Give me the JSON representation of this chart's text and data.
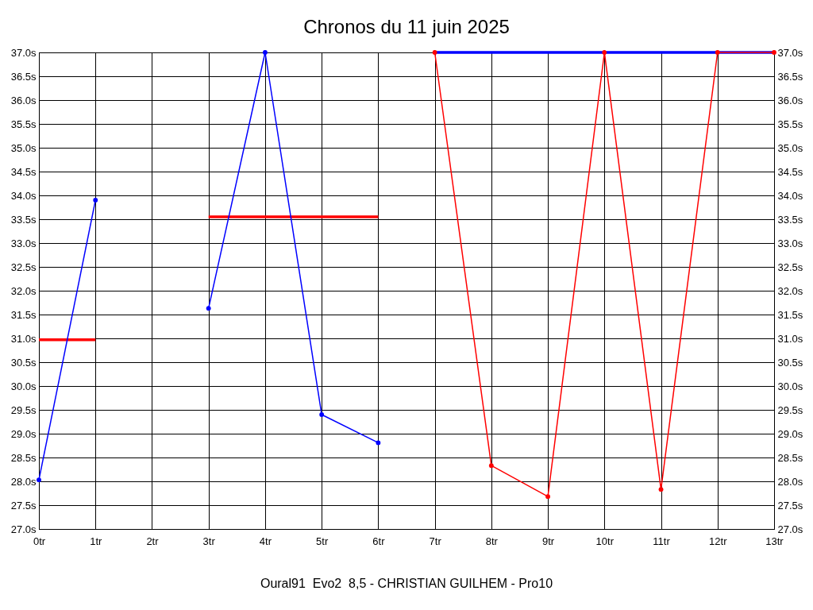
{
  "chart_data": {
    "type": "line",
    "title": "Chronos du 11 juin 2025",
    "annotations": [
      "Oural91  Evo2  8,5 - CHRISTIAN GUILHEM - Pro10"
    ],
    "xlim": [
      0,
      13
    ],
    "xticks": [
      {
        "value": 0,
        "label": "0tr"
      },
      {
        "value": 1,
        "label": "1tr"
      },
      {
        "value": 2,
        "label": "2tr"
      },
      {
        "value": 3,
        "label": "3tr"
      },
      {
        "value": 4,
        "label": "4tr"
      },
      {
        "value": 5,
        "label": "5tr"
      },
      {
        "value": 6,
        "label": "6tr"
      },
      {
        "value": 7,
        "label": "7tr"
      },
      {
        "value": 8,
        "label": "8tr"
      },
      {
        "value": 9,
        "label": "9tr"
      },
      {
        "value": 10,
        "label": "10tr"
      },
      {
        "value": 11,
        "label": "11tr"
      },
      {
        "value": 12,
        "label": "12tr"
      },
      {
        "value": 13,
        "label": "13tr"
      }
    ],
    "ylim": [
      27,
      37
    ],
    "yticks": [
      {
        "value": 27,
        "label": "27.0s"
      },
      {
        "value": 27.5,
        "label": "27.5s"
      },
      {
        "value": 28,
        "label": "28.0s"
      },
      {
        "value": 28.5,
        "label": "28.5s"
      },
      {
        "value": 29,
        "label": "29.0s"
      },
      {
        "value": 29.5,
        "label": "29.5s"
      },
      {
        "value": 30,
        "label": "30.0s"
      },
      {
        "value": 30.5,
        "label": "30.5s"
      },
      {
        "value": 31,
        "label": "31.0s"
      },
      {
        "value": 31.5,
        "label": "31.5s"
      },
      {
        "value": 32,
        "label": "32.0s"
      },
      {
        "value": 32.5,
        "label": "32.5s"
      },
      {
        "value": 33,
        "label": "33.0s"
      },
      {
        "value": 33.5,
        "label": "33.5s"
      },
      {
        "value": 34,
        "label": "34.0s"
      },
      {
        "value": 34.5,
        "label": "34.5s"
      },
      {
        "value": 35,
        "label": "35.0s"
      },
      {
        "value": 35.5,
        "label": "35.5s"
      },
      {
        "value": 36,
        "label": "36.0s"
      },
      {
        "value": 36.5,
        "label": "36.5s"
      },
      {
        "value": 37,
        "label": "37.0s"
      }
    ],
    "y2lim": [
      27,
      37
    ],
    "y2ticks": [
      {
        "value": 27,
        "label": "27.0s"
      },
      {
        "value": 27.5,
        "label": "27.5s"
      },
      {
        "value": 28,
        "label": "28.0s"
      },
      {
        "value": 28.5,
        "label": "28.5s"
      },
      {
        "value": 29,
        "label": "29.0s"
      },
      {
        "value": 29.5,
        "label": "29.5s"
      },
      {
        "value": 30,
        "label": "30.0s"
      },
      {
        "value": 30.5,
        "label": "30.5s"
      },
      {
        "value": 31,
        "label": "31.0s"
      },
      {
        "value": 31.5,
        "label": "31.5s"
      },
      {
        "value": 32,
        "label": "32.0s"
      },
      {
        "value": 32.5,
        "label": "32.5s"
      },
      {
        "value": 33,
        "label": "33.0s"
      },
      {
        "value": 33.5,
        "label": "33.5s"
      },
      {
        "value": 34,
        "label": "34.0s"
      },
      {
        "value": 34.5,
        "label": "34.5s"
      },
      {
        "value": 35,
        "label": "35.0s"
      },
      {
        "value": 35.5,
        "label": "35.5s"
      },
      {
        "value": 36,
        "label": "36.0s"
      },
      {
        "value": 36.5,
        "label": "36.5s"
      },
      {
        "value": 37,
        "label": "37.0s"
      }
    ],
    "grid": true,
    "series": [
      {
        "color": "#ff0000",
        "marker": "none",
        "x": [
          0,
          1
        ],
        "values": [
          30.97,
          30.97
        ]
      },
      {
        "color": "#ff0000",
        "marker": "none",
        "x": [
          3,
          6
        ],
        "values": [
          33.55,
          33.55
        ]
      },
      {
        "color": "#0000ff",
        "marker": "none",
        "x": [
          7,
          13
        ],
        "values": [
          37.0,
          37.0
        ]
      },
      {
        "color": "#0000ff",
        "marker": "circle",
        "x": [
          0,
          1
        ],
        "values": [
          28.03,
          33.9
        ]
      },
      {
        "color": "#0000ff",
        "marker": "circle",
        "x": [
          3,
          4,
          5,
          6
        ],
        "values": [
          31.63,
          37.0,
          29.4,
          28.81
        ]
      },
      {
        "color": "#ff0000",
        "marker": "circle",
        "x": [
          7,
          8,
          9,
          10,
          11,
          12,
          13
        ],
        "values": [
          37.0,
          28.33,
          27.68,
          37.0,
          27.83,
          37.0,
          37.0
        ]
      }
    ]
  }
}
